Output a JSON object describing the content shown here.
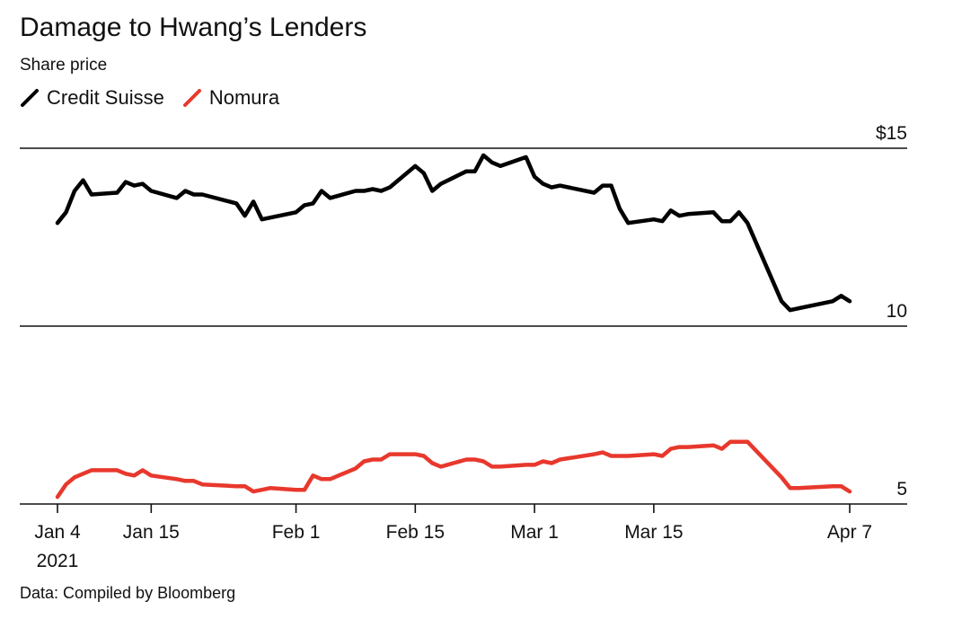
{
  "title": "Damage to Hwang’s Lenders",
  "subtitle": "Share price",
  "source": "Data: Compiled by Bloomberg",
  "colors": {
    "credit_suisse": "#000000",
    "nomura": "#e8382d"
  },
  "chart_data": {
    "type": "line",
    "title": "Damage to Hwang’s Lenders",
    "ylabel": "Share price",
    "ylim": [
      4.8,
      15
    ],
    "y_ticks": [
      {
        "value": 15,
        "label": "$15"
      },
      {
        "value": 10,
        "label": "10"
      },
      {
        "value": 5,
        "label": "5"
      }
    ],
    "x_ticks": [
      {
        "day": 0,
        "label": "Jan 4",
        "sublabel": "2021"
      },
      {
        "day": 11,
        "label": "Jan 15"
      },
      {
        "day": 28,
        "label": "Feb 1"
      },
      {
        "day": 42,
        "label": "Feb 15"
      },
      {
        "day": 56,
        "label": "Mar 1"
      },
      {
        "day": 70,
        "label": "Mar 15"
      },
      {
        "day": 93,
        "label": "Apr 7"
      }
    ],
    "grid": "horizontal",
    "legend": "top-left",
    "series": [
      {
        "name": "Credit Suisse",
        "color": "#000000",
        "points": [
          [
            0,
            12.9
          ],
          [
            1,
            13.2
          ],
          [
            2,
            13.8
          ],
          [
            3,
            14.1
          ],
          [
            4,
            13.7
          ],
          [
            7,
            13.75
          ],
          [
            8,
            14.05
          ],
          [
            9,
            13.95
          ],
          [
            10,
            14.0
          ],
          [
            11,
            13.8
          ],
          [
            14,
            13.6
          ],
          [
            15,
            13.8
          ],
          [
            16,
            13.7
          ],
          [
            17,
            13.7
          ],
          [
            21,
            13.45
          ],
          [
            22,
            13.1
          ],
          [
            23,
            13.5
          ],
          [
            24,
            13.0
          ],
          [
            25,
            13.05
          ],
          [
            28,
            13.2
          ],
          [
            29,
            13.4
          ],
          [
            30,
            13.45
          ],
          [
            31,
            13.8
          ],
          [
            32,
            13.6
          ],
          [
            35,
            13.8
          ],
          [
            36,
            13.8
          ],
          [
            37,
            13.85
          ],
          [
            38,
            13.8
          ],
          [
            39,
            13.9
          ],
          [
            42,
            14.5
          ],
          [
            43,
            14.3
          ],
          [
            44,
            13.8
          ],
          [
            45,
            14.0
          ],
          [
            48,
            14.35
          ],
          [
            49,
            14.35
          ],
          [
            50,
            14.8
          ],
          [
            51,
            14.6
          ],
          [
            52,
            14.5
          ],
          [
            55,
            14.75
          ],
          [
            56,
            14.2
          ],
          [
            57,
            14.0
          ],
          [
            58,
            13.9
          ],
          [
            59,
            13.95
          ],
          [
            63,
            13.75
          ],
          [
            64,
            13.95
          ],
          [
            65,
            13.95
          ],
          [
            66,
            13.3
          ],
          [
            67,
            12.9
          ],
          [
            70,
            13.0
          ],
          [
            71,
            12.95
          ],
          [
            72,
            13.25
          ],
          [
            73,
            13.1
          ],
          [
            74,
            13.15
          ],
          [
            77,
            13.2
          ],
          [
            78,
            12.95
          ],
          [
            79,
            12.95
          ],
          [
            80,
            13.2
          ],
          [
            81,
            12.9
          ],
          [
            85,
            10.7
          ],
          [
            86,
            10.45
          ],
          [
            87,
            10.5
          ],
          [
            91,
            10.7
          ],
          [
            92,
            10.85
          ],
          [
            93,
            10.7
          ]
        ]
      },
      {
        "name": "Nomura",
        "color": "#e8382d",
        "points": [
          [
            0,
            5.2
          ],
          [
            1,
            5.55
          ],
          [
            2,
            5.75
          ],
          [
            3,
            5.85
          ],
          [
            4,
            5.95
          ],
          [
            7,
            5.95
          ],
          [
            8,
            5.85
          ],
          [
            9,
            5.8
          ],
          [
            10,
            5.95
          ],
          [
            11,
            5.8
          ],
          [
            14,
            5.7
          ],
          [
            15,
            5.65
          ],
          [
            16,
            5.65
          ],
          [
            17,
            5.55
          ],
          [
            21,
            5.5
          ],
          [
            22,
            5.5
          ],
          [
            23,
            5.35
          ],
          [
            24,
            5.4
          ],
          [
            25,
            5.45
          ],
          [
            28,
            5.4
          ],
          [
            29,
            5.4
          ],
          [
            30,
            5.8
          ],
          [
            31,
            5.7
          ],
          [
            32,
            5.7
          ],
          [
            35,
            6.0
          ],
          [
            36,
            6.2
          ],
          [
            37,
            6.25
          ],
          [
            38,
            6.25
          ],
          [
            39,
            6.4
          ],
          [
            42,
            6.4
          ],
          [
            43,
            6.35
          ],
          [
            44,
            6.15
          ],
          [
            45,
            6.05
          ],
          [
            48,
            6.25
          ],
          [
            49,
            6.25
          ],
          [
            50,
            6.2
          ],
          [
            51,
            6.05
          ],
          [
            52,
            6.05
          ],
          [
            55,
            6.1
          ],
          [
            56,
            6.1
          ],
          [
            57,
            6.2
          ],
          [
            58,
            6.15
          ],
          [
            59,
            6.25
          ],
          [
            63,
            6.4
          ],
          [
            64,
            6.45
          ],
          [
            65,
            6.35
          ],
          [
            66,
            6.35
          ],
          [
            67,
            6.35
          ],
          [
            70,
            6.4
          ],
          [
            71,
            6.35
          ],
          [
            72,
            6.55
          ],
          [
            73,
            6.6
          ],
          [
            74,
            6.6
          ],
          [
            77,
            6.65
          ],
          [
            78,
            6.55
          ],
          [
            79,
            6.75
          ],
          [
            80,
            6.75
          ],
          [
            81,
            6.75
          ],
          [
            85,
            5.75
          ],
          [
            86,
            5.45
          ],
          [
            87,
            5.45
          ],
          [
            91,
            5.5
          ],
          [
            92,
            5.5
          ],
          [
            93,
            5.35
          ]
        ]
      }
    ]
  }
}
